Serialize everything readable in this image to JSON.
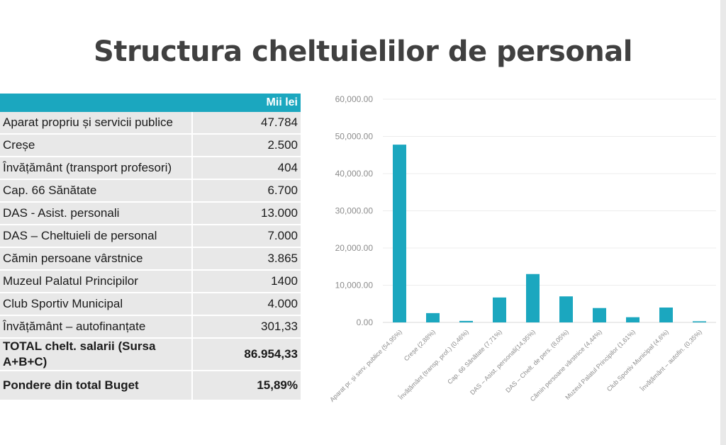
{
  "title": "Structura cheltuielilor de personal",
  "table": {
    "header_label": "",
    "header_unit": "Mii lei",
    "rows": [
      {
        "label": "Aparat propriu și servicii publice",
        "value": "47.784"
      },
      {
        "label": "Creșe",
        "value": "2.500"
      },
      {
        "label": "Învățământ (transport profesori)",
        "value": "404"
      },
      {
        "label": "Cap. 66 Sănătate",
        "value": "6.700"
      },
      {
        "label": "DAS - Asist. personali",
        "value": "13.000"
      },
      {
        "label": "DAS – Cheltuieli de personal",
        "value": "7.000"
      },
      {
        "label": "Cămin persoane vârstnice",
        "value": "3.865"
      },
      {
        "label": "Muzeul Palatul Principilor",
        "value": "1400"
      },
      {
        "label": "Club Sportiv Municipal",
        "value": "4.000"
      },
      {
        "label": "Învățământ – autofinanțate",
        "value": "301,33"
      }
    ],
    "total": {
      "label": "TOTAL chelt. salarii (Sursa A+B+C)",
      "value": "86.954,33"
    },
    "weight": {
      "label": "Pondere din total Buget",
      "value": "15,89%"
    }
  },
  "chart_data": {
    "type": "bar",
    "categories": [
      "Aparat pr. și serv. publice (54,95%)",
      "Creșe (2,88%)",
      "Învățământ (transp. prof.) (0,46%)",
      "Cap. 66 Sănătate (7,71%)",
      "DAS – Asist. personali(14,95%)",
      "DAS – Chelt. de pers. (8,05%)",
      "Cămin persoane vârstnice (4,44%)",
      "Muzeul Palatul Principilor (1,61%)",
      "Club Sportiv Municipal (4,6%)",
      "Învățământ – autofin. (0,35%)"
    ],
    "values": [
      47784,
      2500,
      404,
      6700,
      13000,
      7000,
      3865,
      1400,
      4000,
      301.33
    ],
    "yticks": [
      "0.00",
      "10,000.00",
      "20,000.00",
      "30,000.00",
      "40,000.00",
      "50,000.00",
      "60,000.00"
    ],
    "ylim": [
      0,
      60000
    ],
    "grid": true,
    "bar_color": "#1ba7bf"
  }
}
